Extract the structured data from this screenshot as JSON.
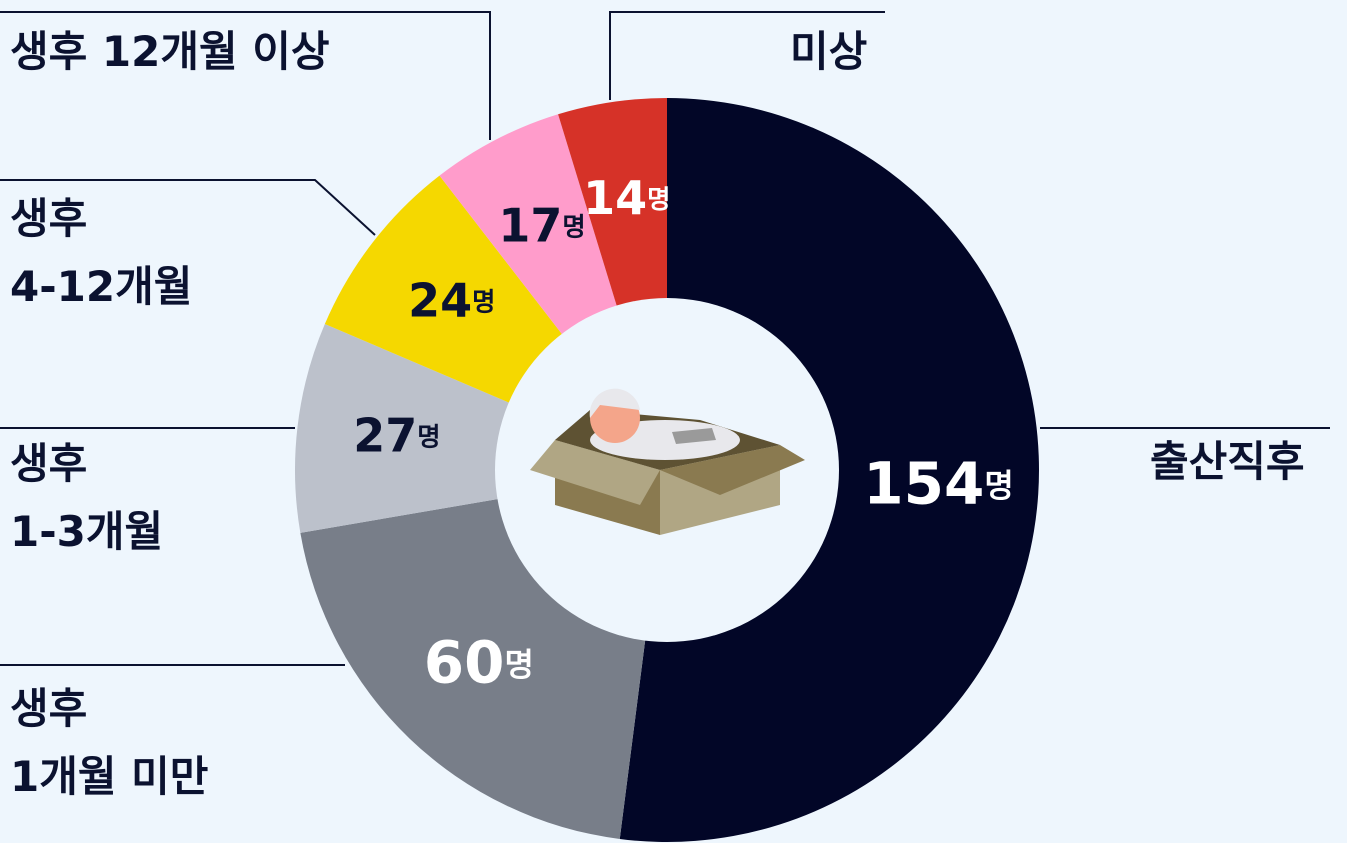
{
  "chart_data": {
    "type": "pie",
    "categories": [
      "출산직후",
      "생후\n1개월 미만",
      "생후\n1-3개월",
      "생후\n4-12개월",
      "생후 12개월 이상",
      "미상"
    ],
    "values": [
      154,
      60,
      27,
      24,
      17,
      14
    ],
    "value_labels": [
      "154명",
      "60명",
      "27명",
      "24명",
      "17명",
      "14명"
    ],
    "colors": [
      "#020627",
      "#787e89",
      "#bcc1cb",
      "#f5d800",
      "#ff9ccb",
      "#d63228"
    ]
  }
}
